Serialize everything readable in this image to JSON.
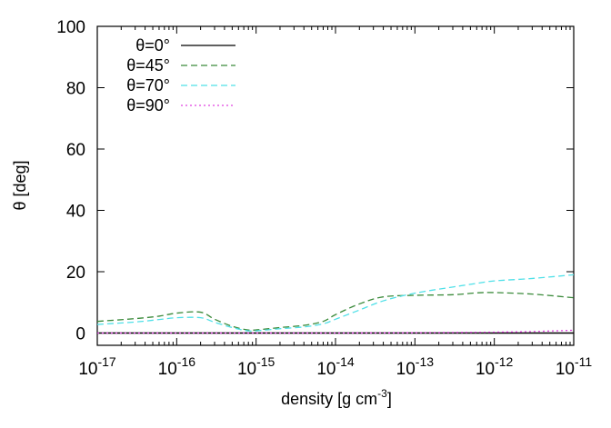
{
  "chart_data": {
    "type": "line",
    "xlabel": "density [g cm",
    "xlabel_sup": "-3",
    "xlabel_close": "]",
    "ylabel": "θ [deg]",
    "xscale": "log",
    "xlim": [
      1e-17,
      1e-11
    ],
    "ylim": [
      -4,
      100
    ],
    "grid": false,
    "legend_position": "top-left",
    "yticks": [
      "0",
      "20",
      "40",
      "60",
      "80",
      "100"
    ],
    "ytick_values": [
      0,
      20,
      40,
      60,
      80,
      100
    ],
    "xticks": [
      {
        "base": "10",
        "exp": "-17"
      },
      {
        "base": "10",
        "exp": "-16"
      },
      {
        "base": "10",
        "exp": "-15"
      },
      {
        "base": "10",
        "exp": "-14"
      },
      {
        "base": "10",
        "exp": "-13"
      },
      {
        "base": "10",
        "exp": "-12"
      },
      {
        "base": "10",
        "exp": "-11"
      }
    ],
    "series": [
      {
        "name": "θ=0°",
        "color": "#000000",
        "dash": "solid",
        "x": [
          1e-17,
          1e-16,
          1e-15,
          1e-14,
          1e-13,
          1e-12,
          1e-11
        ],
        "y": [
          0,
          0,
          0,
          0,
          0,
          0,
          0
        ]
      },
      {
        "name": "θ=45°",
        "color": "#3a8a3a",
        "dash": "dashed",
        "x": [
          1e-17,
          3e-17,
          6e-17,
          1e-16,
          2e-16,
          3e-16,
          5e-16,
          8e-16,
          1.2e-15,
          2e-15,
          4e-15,
          7e-15,
          1e-14,
          2e-14,
          4e-14,
          1e-13,
          3e-13,
          6e-13,
          1e-12,
          3e-12,
          1e-11
        ],
        "y": [
          3.8,
          4.7,
          5.5,
          6.5,
          6.8,
          4.5,
          2.2,
          1.0,
          1.2,
          1.8,
          2.5,
          3.8,
          6.0,
          9.5,
          11.8,
          12.3,
          12.5,
          13.1,
          13.2,
          12.7,
          11.5
        ]
      },
      {
        "name": "θ=70°",
        "color": "#4fe0e8",
        "dash": "dashed",
        "x": [
          1e-17,
          3e-17,
          6e-17,
          1e-16,
          2e-16,
          3e-16,
          5e-16,
          8e-16,
          1.2e-15,
          2e-15,
          4e-15,
          7e-15,
          1e-14,
          2e-14,
          4e-14,
          1e-13,
          3e-13,
          6e-13,
          1e-12,
          3e-12,
          1e-11
        ],
        "y": [
          2.8,
          3.6,
          4.4,
          5.0,
          5.0,
          3.5,
          1.8,
          0.7,
          0.9,
          1.4,
          2.0,
          3.0,
          4.5,
          7.5,
          10.5,
          13.0,
          15.0,
          16.2,
          17.0,
          17.8,
          19.0
        ]
      },
      {
        "name": "θ=90°",
        "color": "#e040e0",
        "dash": "dotted",
        "x": [
          1e-17,
          1e-16,
          1e-15,
          1e-14,
          1e-13,
          1e-12,
          3e-12,
          1e-11
        ],
        "y": [
          0,
          0,
          0,
          0,
          0.1,
          0.3,
          0.5,
          0.9
        ]
      }
    ]
  }
}
